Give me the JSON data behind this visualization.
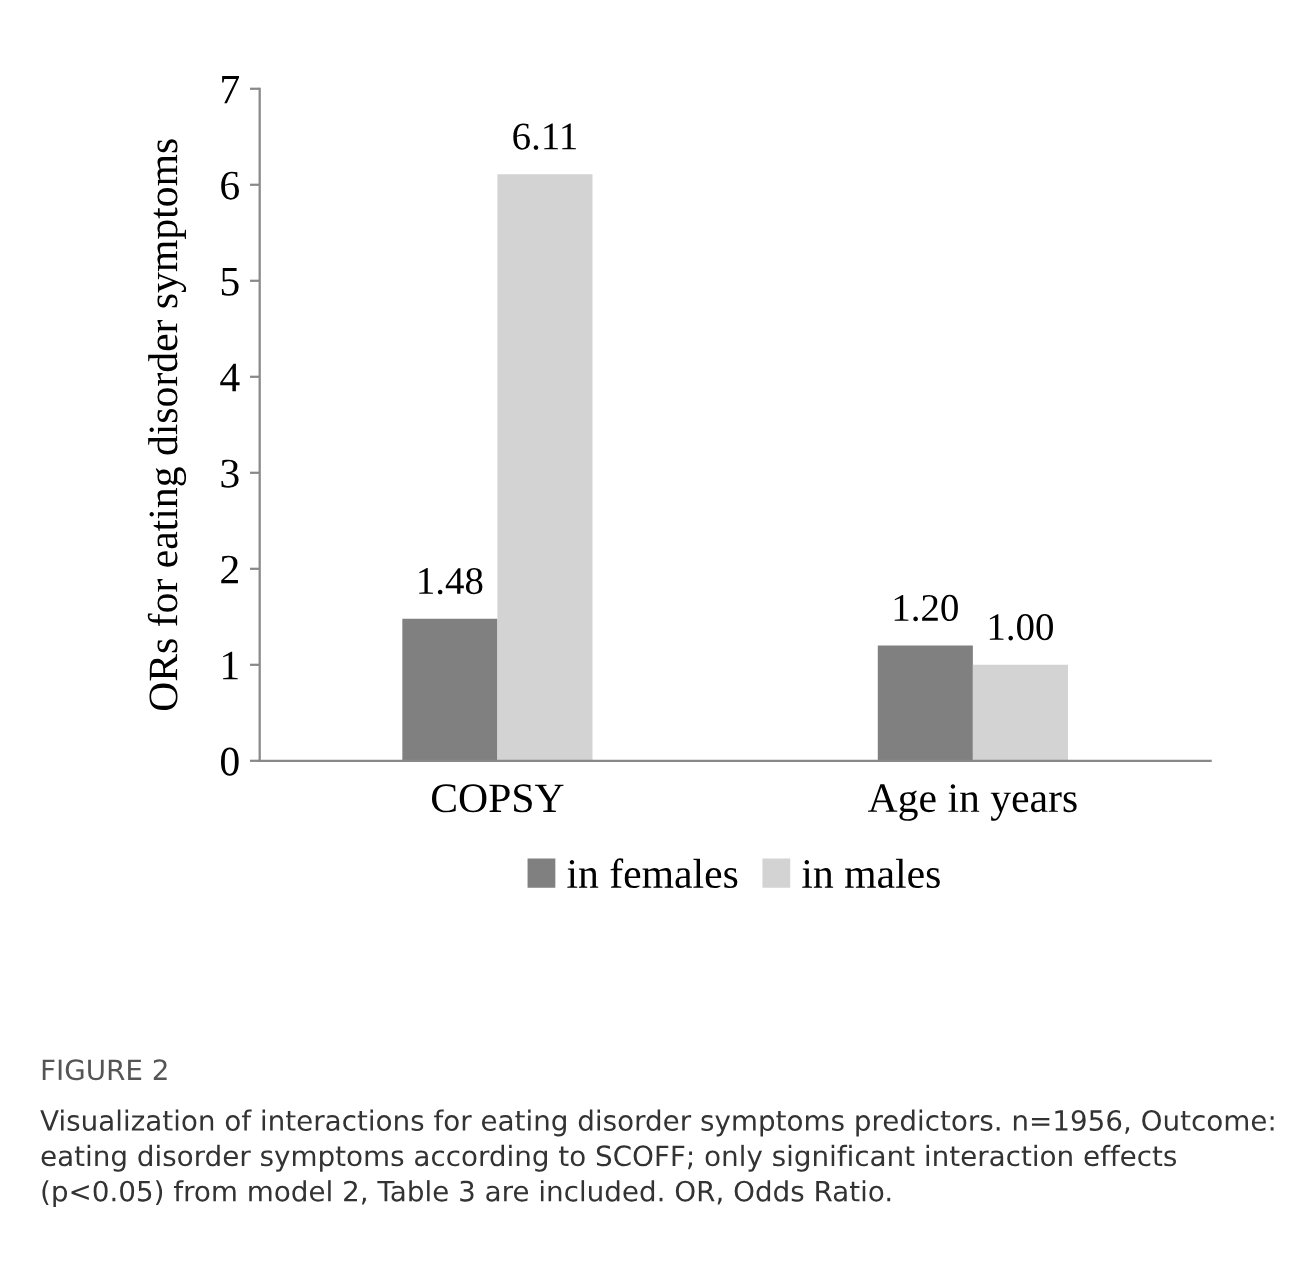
{
  "chart_data": {
    "type": "bar",
    "categories": [
      "COPSY",
      "Age in years"
    ],
    "series": [
      {
        "name": "in females",
        "color": "#808080",
        "values": [
          1.48,
          1.2
        ],
        "value_labels": [
          "1.48",
          "1.20"
        ]
      },
      {
        "name": "in males",
        "color": "#d3d3d3",
        "values": [
          6.11,
          1.0
        ],
        "value_labels": [
          "6.11",
          "1.00"
        ]
      }
    ],
    "ylabel": "ORs for eating disorder symptoms",
    "ylim": [
      0,
      7
    ],
    "yticks": [
      0,
      1,
      2,
      3,
      4,
      5,
      6,
      7
    ],
    "grid": false,
    "legend": "bottom",
    "annotations": [
      "FIGURE 2",
      "Visualization of interactions for eating disorder symptoms predictors. n=1956, Outcome: eating disorder symptoms according to SCOFF; only significant interaction effects (p<0.05) from model 2, Table 3 are included. OR, Odds Ratio."
    ]
  }
}
